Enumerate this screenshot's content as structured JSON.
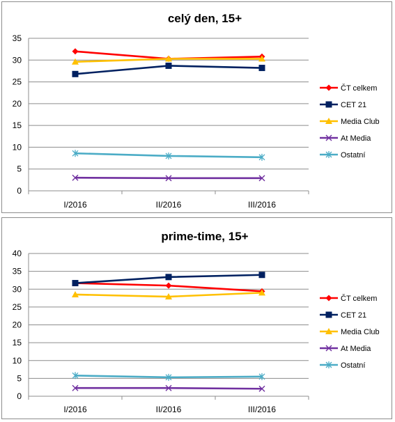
{
  "chart_data": [
    {
      "type": "line",
      "title": "celý den, 15+",
      "categories": [
        "I/2016",
        "II/2016",
        "III/2016"
      ],
      "ylim": [
        0,
        35
      ],
      "yticks": [
        0,
        5,
        10,
        15,
        20,
        25,
        30,
        35
      ],
      "grid": true,
      "legend": "right",
      "series": [
        {
          "name": "ČT celkem",
          "values": [
            32.0,
            30.3,
            30.8
          ],
          "color": "#ff0000",
          "marker": "diamond"
        },
        {
          "name": "CET 21",
          "values": [
            26.8,
            28.7,
            28.2
          ],
          "color": "#002060",
          "marker": "square"
        },
        {
          "name": "Media Club",
          "values": [
            29.6,
            30.3,
            30.3
          ],
          "color": "#ffc000",
          "marker": "triangle"
        },
        {
          "name": "At Media",
          "values": [
            3.0,
            2.9,
            2.9
          ],
          "color": "#7030a0",
          "marker": "x"
        },
        {
          "name": "Ostatní",
          "values": [
            8.6,
            8.0,
            7.7
          ],
          "color": "#4bacc6",
          "marker": "star"
        }
      ]
    },
    {
      "type": "line",
      "title": "prime-time, 15+",
      "categories": [
        "I/2016",
        "II/2016",
        "III/2016"
      ],
      "ylim": [
        0,
        40
      ],
      "yticks": [
        0,
        5,
        10,
        15,
        20,
        25,
        30,
        35,
        40
      ],
      "grid": true,
      "legend": "right",
      "series": [
        {
          "name": "ČT celkem",
          "values": [
            31.7,
            31.0,
            29.4
          ],
          "color": "#ff0000",
          "marker": "diamond"
        },
        {
          "name": "CET 21",
          "values": [
            31.7,
            33.4,
            34.0
          ],
          "color": "#002060",
          "marker": "square"
        },
        {
          "name": "Media Club",
          "values": [
            28.5,
            27.9,
            29.0
          ],
          "color": "#ffc000",
          "marker": "triangle"
        },
        {
          "name": "At Media",
          "values": [
            2.3,
            2.3,
            2.1
          ],
          "color": "#7030a0",
          "marker": "x"
        },
        {
          "name": "Ostatní",
          "values": [
            5.8,
            5.3,
            5.5
          ],
          "color": "#4bacc6",
          "marker": "star"
        }
      ]
    }
  ]
}
